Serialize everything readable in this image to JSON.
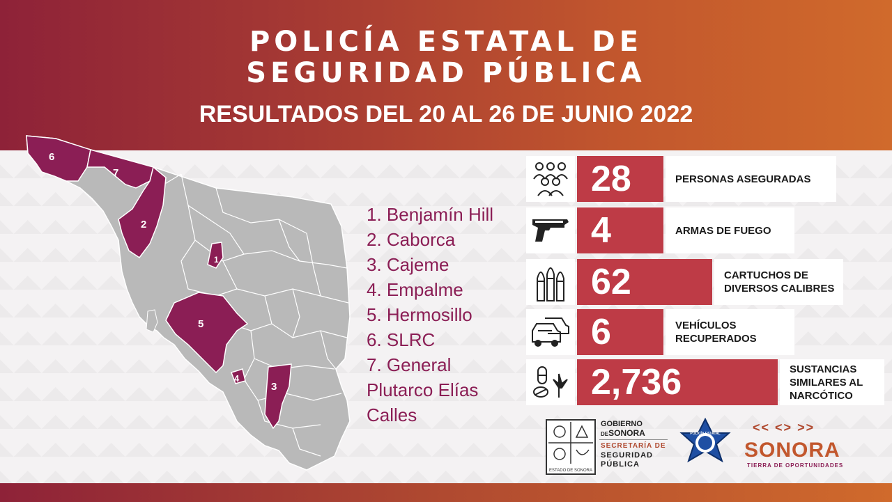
{
  "header": {
    "title_line1": "POLICÍA ESTATAL DE",
    "title_line2": "SEGURIDAD PÚBLICA",
    "subtitle": "RESULTADOS DEL 20 AL 26 DE JUNIO 2022"
  },
  "map": {
    "region_labels": [
      "1",
      "2",
      "3",
      "4",
      "5",
      "6",
      "7"
    ]
  },
  "legend": [
    "1. Benjamín Hill",
    "2. Caborca",
    "3. Cajeme",
    "4. Empalme",
    "5. Hermosillo",
    "6. SLRC",
    "7. General",
    "Plutarco Elías",
    "Calles"
  ],
  "stats": [
    {
      "value": "28",
      "label_lines": [
        "PERSONAS ASEGURADAS"
      ],
      "icon": "people-icon"
    },
    {
      "value": "4",
      "label_lines": [
        "ARMAS DE FUEGO"
      ],
      "icon": "gun-icon"
    },
    {
      "value": "62",
      "label_lines": [
        "CARTUCHOS DE",
        "DIVERSOS CALIBRES"
      ],
      "icon": "bullets-icon"
    },
    {
      "value": "6",
      "label_lines": [
        "VEHÍCULOS",
        "RECUPERADOS"
      ],
      "icon": "cars-icon"
    },
    {
      "value": "2,736",
      "label_lines": [
        "SUSTANCIAS",
        "SIMILARES AL",
        "NARCÓTICO"
      ],
      "icon": "drugs-icon"
    }
  ],
  "logos": {
    "gov_line1": "GOBIERNO",
    "gov_line2_small": "DE",
    "gov_line2": "SONORA",
    "sec_line1": "SECRETARÍA DE",
    "sec_line2": "SEGURIDAD",
    "sec_line3": "PÚBLICA",
    "seal_caption": "ESTADO DE SONORA",
    "badge_text": "POLICÍA ESTATAL",
    "sonora_brand": "SONORA",
    "sonora_tagline": "TIERRA DE OPORTUNIDADES"
  },
  "colors": {
    "accent_bar": "#be3b46",
    "region_highlight": "#8b1e55",
    "map_gray": "#b9b9b9",
    "header_start": "#8e2238",
    "header_end": "#d06a2c"
  }
}
